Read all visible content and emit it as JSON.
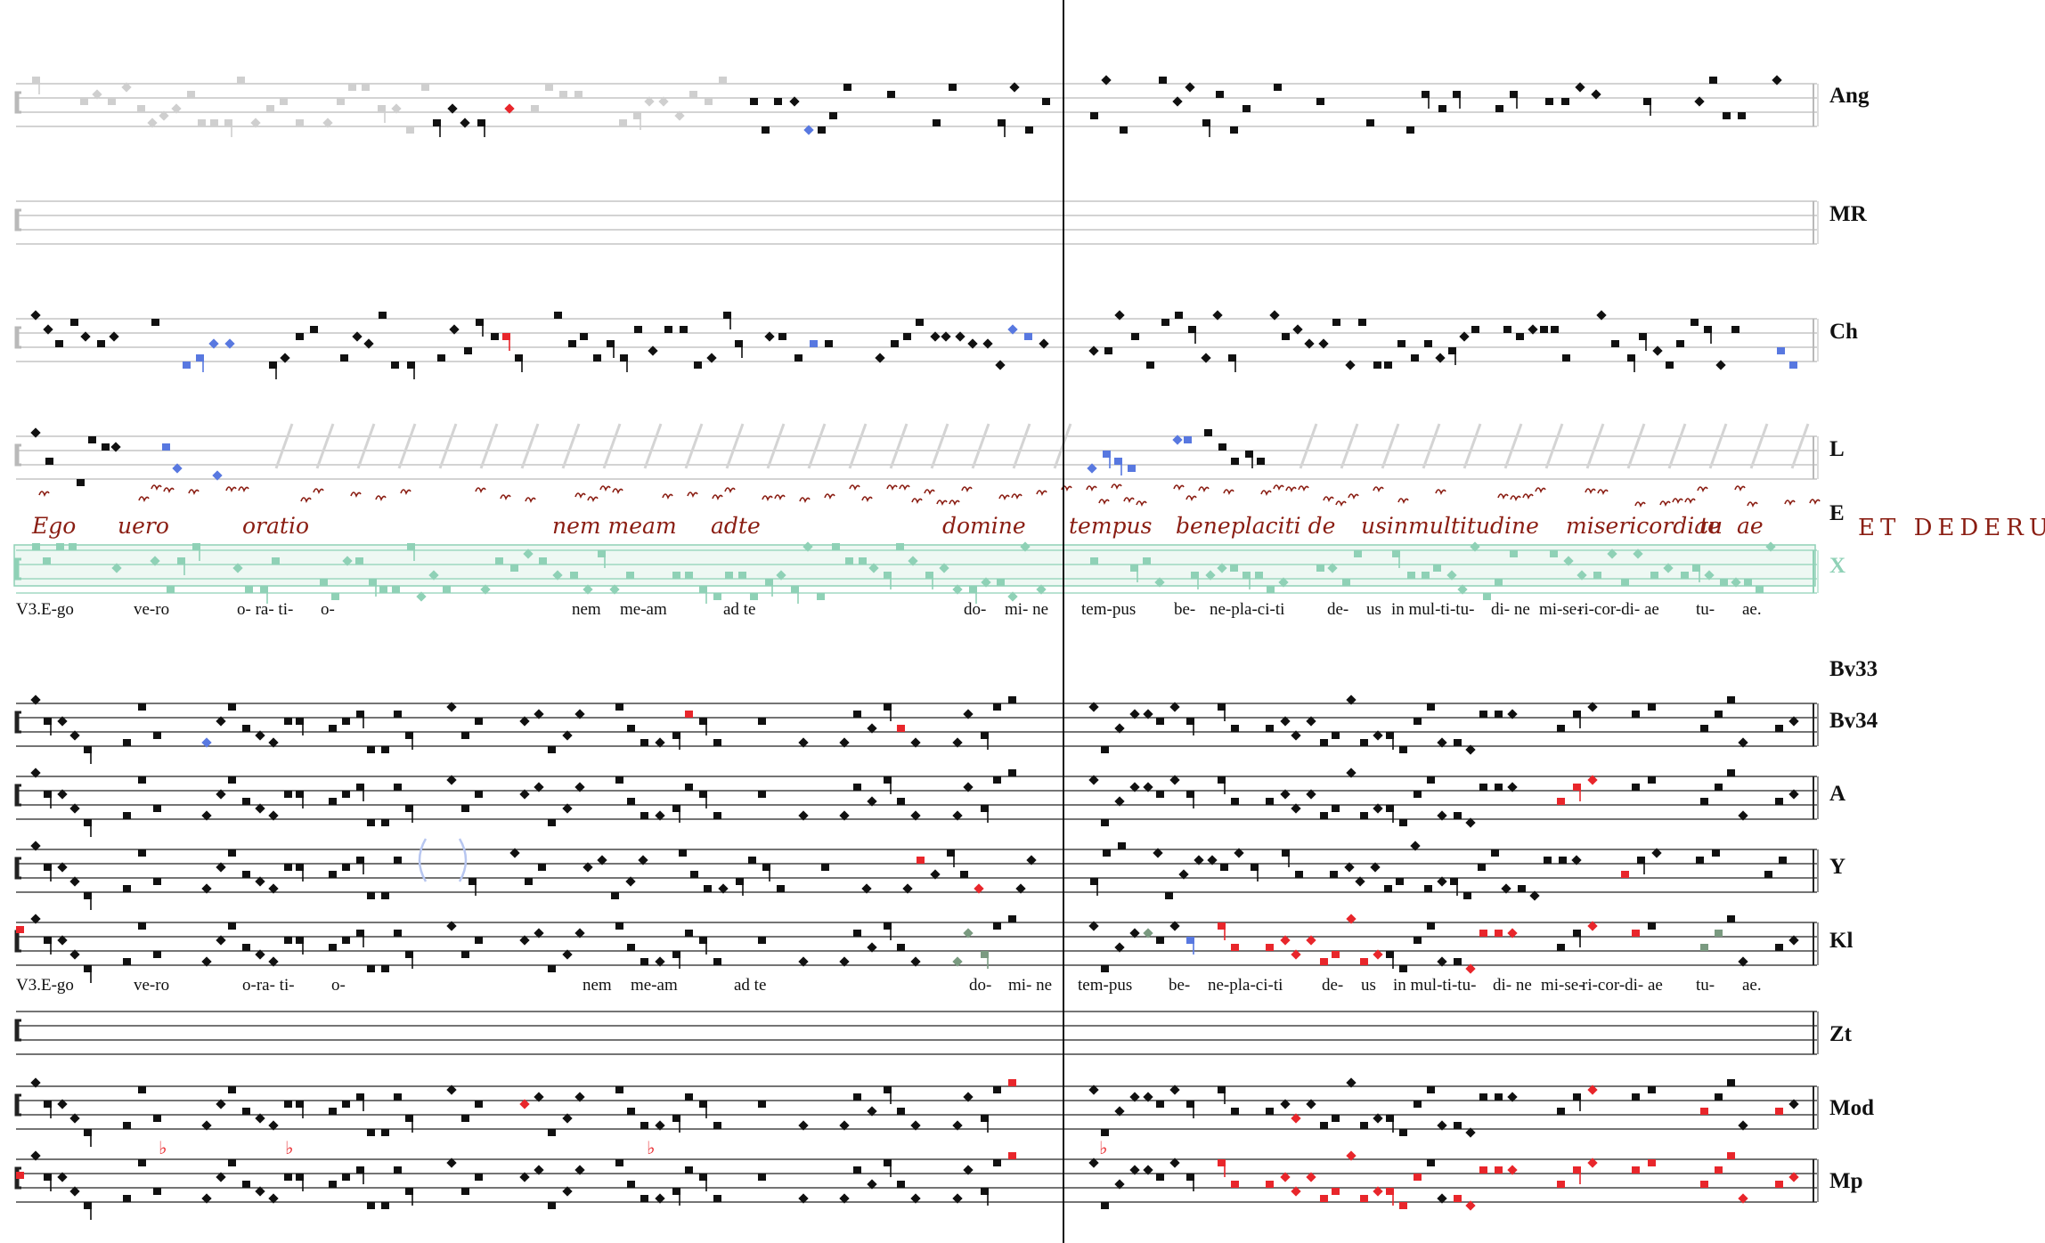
{
  "palette": {
    "ink": "#111111",
    "faded": "#cfcfcf",
    "blue": "#5878e0",
    "red": "#e8262b",
    "green": "#7a9a80",
    "teal": "#8fd1b6",
    "manuscript": "#8a1d12",
    "staff": "#b9b9b9",
    "staff_dark": "#222222",
    "slash": "#d4d4d4"
  },
  "upper_block": {
    "staves": [
      {
        "siglum": "Ang",
        "style": "mixed"
      },
      {
        "siglum": "MR",
        "style": "empty"
      },
      {
        "siglum": "Ch",
        "style": "full"
      },
      {
        "siglum": "L",
        "style": "fragment"
      },
      {
        "siglum": "E",
        "style": "manuscript"
      },
      {
        "siglum": "X",
        "style": "teal"
      }
    ],
    "manuscript_text": [
      "Ego",
      "uero",
      "oratio",
      "nem meam",
      "adte",
      "domine",
      "tempus",
      "beneplaciti de",
      "usinmultitudine",
      "misericordiae",
      "tu",
      "ae"
    ],
    "manuscript_caps": "ET DEDERUNT",
    "lyrics": [
      "V3.E-go",
      "ve-ro",
      "o- ra- ti-",
      "o-",
      "nem",
      "me-am",
      "ad te",
      "do-",
      "mi- ne",
      "tem-pus",
      "be-",
      "ne-pla-ci-ti",
      "de-",
      "us",
      "in mul-ti-tu-",
      "di- ne",
      "mi-se-",
      "ri-cor-di- ae",
      "tu-",
      "ae."
    ]
  },
  "lower_block": {
    "staves": [
      {
        "siglum": "Bv33",
        "style": "label"
      },
      {
        "siglum": "Bv34",
        "style": "full"
      },
      {
        "siglum": "A",
        "style": "full_red_end"
      },
      {
        "siglum": "Y",
        "style": "full_gap"
      },
      {
        "siglum": "Kl",
        "style": "full_colored"
      },
      {
        "siglum": "Zt",
        "style": "empty"
      },
      {
        "siglum": "Mod",
        "style": "full_red"
      },
      {
        "siglum": "Mp",
        "style": "full_red_heavy"
      }
    ],
    "lyrics": [
      "V3.E-go",
      "ve-ro",
      "o-ra- ti-",
      "o-",
      "nem",
      "me-am",
      "ad te",
      "do-",
      "mi- ne",
      "tem-pus",
      "be-",
      "ne-pla-ci-ti",
      "de-",
      "us",
      "in mul-ti-tu-",
      "di- ne",
      "mi-se-",
      "ri-cor-di- ae",
      "tu-",
      "ae."
    ]
  }
}
